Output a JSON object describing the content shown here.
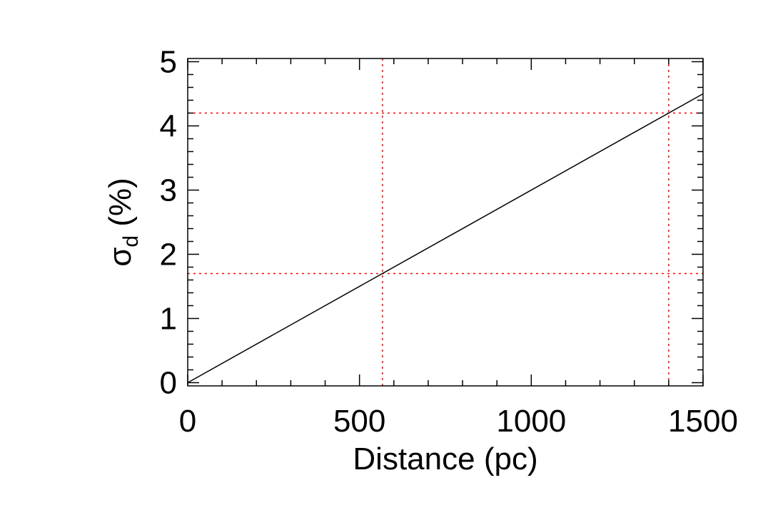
{
  "chart_data": {
    "type": "line",
    "title": "",
    "xlabel": "Distance (pc)",
    "ylabel": {
      "symbol": "σ",
      "subscript": "d",
      "suffix": " (%)"
    },
    "xlim": [
      0,
      1500
    ],
    "ylim": [
      -0.05,
      5.05
    ],
    "xticks": [
      0,
      500,
      1000,
      1500
    ],
    "yticks": [
      0,
      1,
      2,
      3,
      4,
      5
    ],
    "x_minor_step": 100,
    "y_minor_step": 0.2,
    "grid": false,
    "series": [
      {
        "color": "#000000",
        "x": [
          0,
          1500
        ],
        "y": [
          0,
          4.5
        ]
      }
    ],
    "reference_lines": {
      "color": "#ff0000",
      "vertical_x": [
        567,
        1400
      ],
      "horizontal_y": [
        1.7,
        4.2
      ]
    }
  }
}
